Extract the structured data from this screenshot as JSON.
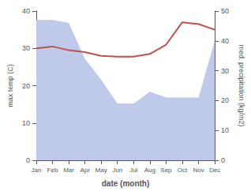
{
  "chart_data": {
    "type": "line",
    "categories": [
      "Jan",
      "Feb",
      "Mar",
      "Apr",
      "May",
      "Jun",
      "Jul",
      "Aug",
      "Sep",
      "Oct",
      "Nov",
      "Dec"
    ],
    "xlabel": "date (month)",
    "ylabel": "max temp (C)",
    "y2label": "med. precipitation (kg/m2)",
    "series": [
      {
        "type": "area",
        "axis": "y2",
        "color": "#bfc9ea",
        "values": [
          47,
          47,
          46,
          34,
          27,
          19,
          19,
          23,
          21,
          21,
          21,
          40
        ]
      },
      {
        "type": "line",
        "color": "#c0504d",
        "values": [
          30.0,
          30.5,
          29.5,
          29.0,
          28.0,
          27.8,
          27.8,
          28.5,
          31.0,
          37.0,
          36.5,
          35.0
        ]
      }
    ],
    "ylim": [
      0,
      40
    ],
    "yticks": [
      0,
      10,
      20,
      30,
      40
    ],
    "y2lim": [
      0,
      50
    ],
    "y2ticks": [
      0,
      10,
      20,
      30,
      40,
      50
    ],
    "grid": false
  }
}
